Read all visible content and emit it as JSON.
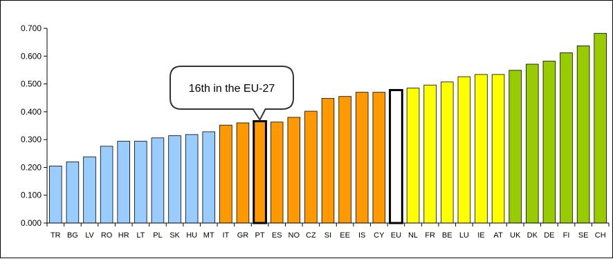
{
  "chart_data": {
    "type": "bar",
    "categories": [
      "TR",
      "BG",
      "LV",
      "RO",
      "HR",
      "LT",
      "PL",
      "SK",
      "HU",
      "MT",
      "IT",
      "GR",
      "PT",
      "ES",
      "NO",
      "CZ",
      "SI",
      "EE",
      "IS",
      "CY",
      "EU",
      "NL",
      "FR",
      "BE",
      "LU",
      "IE",
      "AT",
      "UK",
      "DK",
      "DE",
      "FI",
      "SE",
      "CH"
    ],
    "values": [
      0.205,
      0.22,
      0.238,
      0.276,
      0.294,
      0.294,
      0.306,
      0.314,
      0.318,
      0.328,
      0.352,
      0.36,
      0.366,
      0.363,
      0.38,
      0.402,
      0.448,
      0.455,
      0.47,
      0.47,
      0.478,
      0.485,
      0.496,
      0.507,
      0.526,
      0.534,
      0.534,
      0.549,
      0.571,
      0.582,
      0.612,
      0.637,
      0.682
    ],
    "colors": [
      "#99ccff",
      "#99ccff",
      "#99ccff",
      "#99ccff",
      "#99ccff",
      "#99ccff",
      "#99ccff",
      "#99ccff",
      "#99ccff",
      "#99ccff",
      "#ff9900",
      "#ff9900",
      "#ff9900",
      "#ff9900",
      "#ff9900",
      "#ff9900",
      "#ff9900",
      "#ff9900",
      "#ff9900",
      "#ff9900",
      "#ffffff",
      "#ffff00",
      "#ffff00",
      "#ffff00",
      "#ffff00",
      "#ffff00",
      "#ffff00",
      "#99cc00",
      "#99cc00",
      "#99cc00",
      "#99cc00",
      "#99cc00",
      "#99cc00"
    ],
    "highlighted": [
      "PT",
      "EU"
    ],
    "ylim": [
      0,
      0.7
    ],
    "yticks": [
      "0.000",
      "0.100",
      "0.200",
      "0.300",
      "0.400",
      "0.500",
      "0.600",
      "0.700"
    ],
    "grid": false,
    "title": "",
    "xlabel": "",
    "ylabel": "",
    "annotation": {
      "text": "16th in the EU-27",
      "target": "PT"
    }
  }
}
